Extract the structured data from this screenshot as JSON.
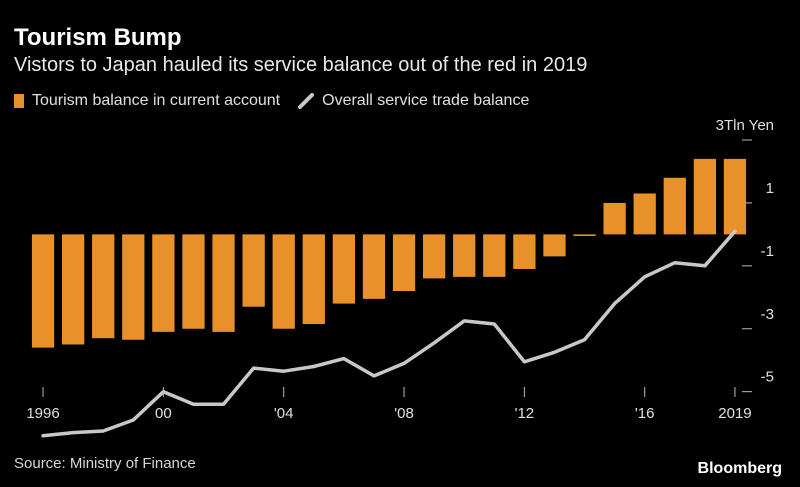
{
  "header": {
    "title": "Tourism Bump",
    "subtitle": "Vistors to Japan hauled its service balance out of the red in 2019"
  },
  "legend": {
    "bar_label": "Tourism balance in current account",
    "line_label": "Overall service trade balance"
  },
  "footer": {
    "source": "Source: Ministry of Finance",
    "brand": "Bloomberg"
  },
  "colors": {
    "bar": "#e8912b",
    "line": "#c8c8c8",
    "background": "#000000"
  },
  "chart_data": {
    "type": "bar",
    "title": "Tourism Bump",
    "subtitle": "Vistors to Japan hauled its service balance out of the red in 2019",
    "y_unit_label": "3Tln Yen",
    "x": [
      1996,
      1997,
      1998,
      1999,
      2000,
      2001,
      2002,
      2003,
      2004,
      2005,
      2006,
      2007,
      2008,
      2009,
      2010,
      2011,
      2012,
      2013,
      2014,
      2015,
      2016,
      2017,
      2018,
      2019
    ],
    "x_tick_values": [
      1996,
      2000,
      2004,
      2008,
      2012,
      2016,
      2019
    ],
    "x_tick_labels": [
      "1996",
      "00",
      "'04",
      "'08",
      "'12",
      "'16",
      "2019"
    ],
    "y_ticks": [
      3,
      1,
      -1,
      -3,
      -5
    ],
    "y_tick_labels": [
      "3Tln Yen",
      "1",
      "-1",
      "-3",
      "-5"
    ],
    "ylim": [
      -6.6,
      3.0
    ],
    "legend_position": "top-left",
    "series": [
      {
        "name": "Tourism balance in current account",
        "type": "bar",
        "values": [
          -3.6,
          -3.5,
          -3.3,
          -3.35,
          -3.1,
          -3.0,
          -3.1,
          -2.3,
          -3.0,
          -2.85,
          -2.2,
          -2.05,
          -1.8,
          -1.4,
          -1.35,
          -1.35,
          -1.1,
          -0.7,
          -0.05,
          1.0,
          1.3,
          1.8,
          2.4,
          2.4
        ]
      },
      {
        "name": "Overall service trade balance",
        "type": "line",
        "values": [
          -6.4,
          -6.3,
          -6.25,
          -5.9,
          -5.0,
          -5.4,
          -5.4,
          -4.25,
          -4.35,
          -4.2,
          -3.95,
          -4.5,
          -4.1,
          -3.45,
          -2.75,
          -2.85,
          -4.05,
          -3.75,
          -3.35,
          -2.2,
          -1.35,
          -0.9,
          -1.0,
          0.1
        ]
      }
    ]
  }
}
